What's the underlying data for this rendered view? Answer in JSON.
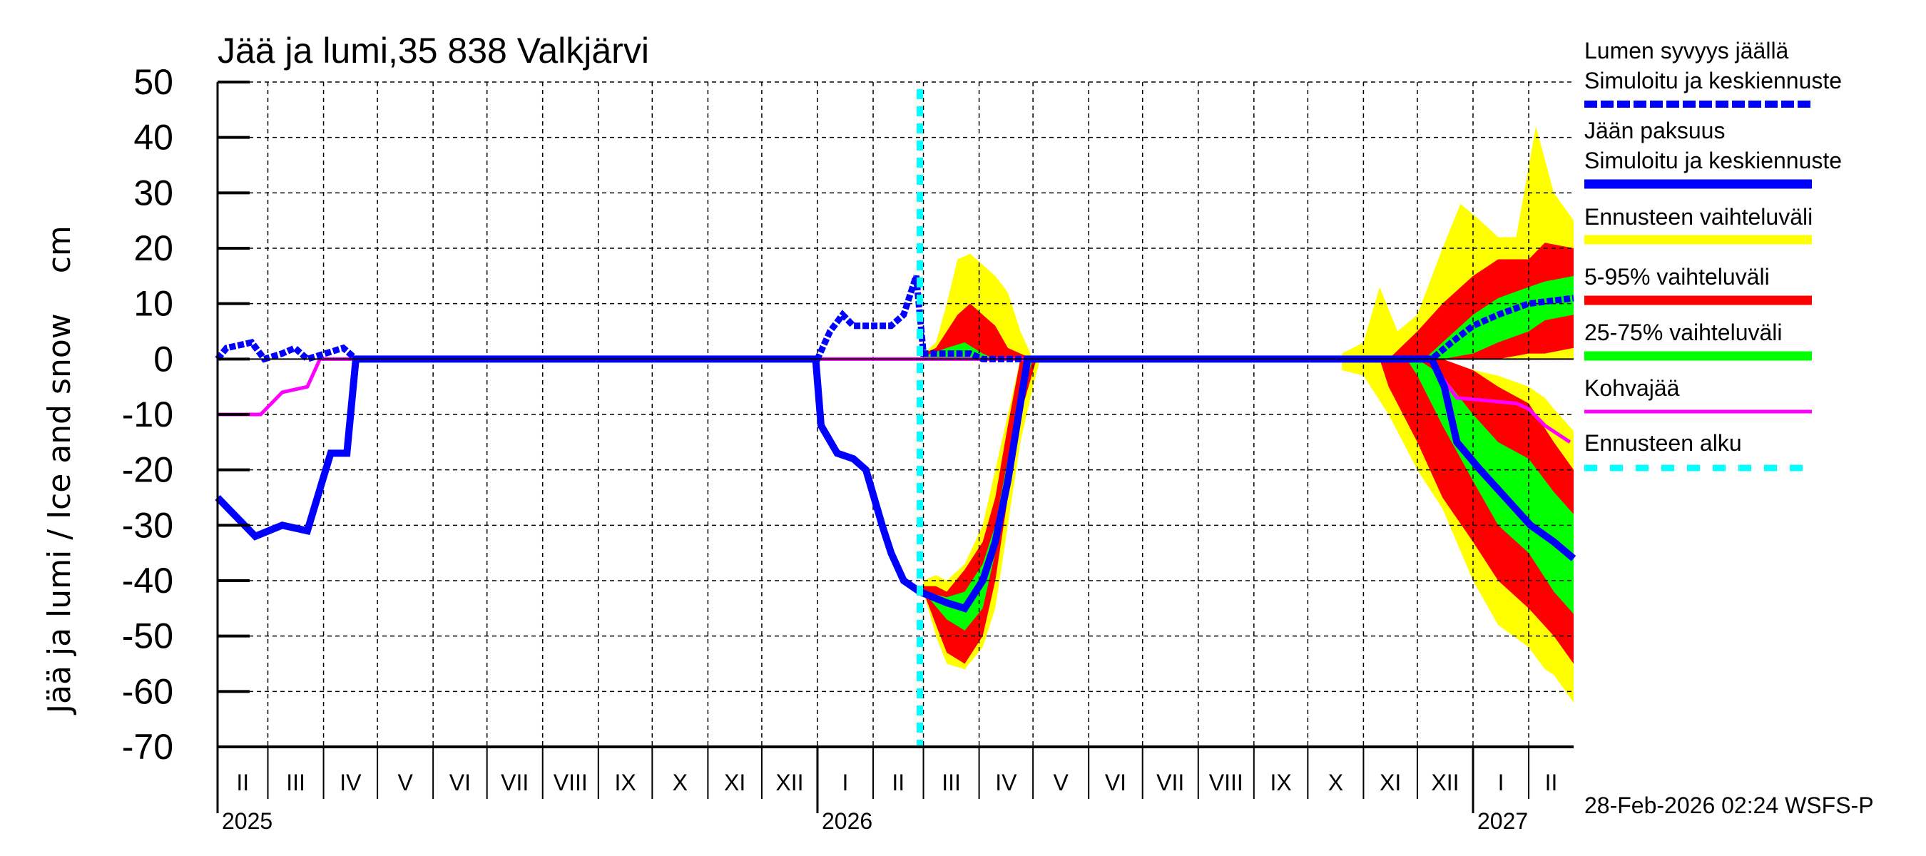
{
  "chart_data": {
    "type": "area",
    "title": "Jää ja lumi,35 838 Valkjärvi",
    "ylabel": "Jää ja lumi / Ice and snow    cm",
    "ylim": [
      -70,
      50
    ],
    "yticks": [
      50,
      40,
      30,
      20,
      10,
      0,
      -10,
      -20,
      -30,
      -40,
      -50,
      -60,
      -70
    ],
    "xlim": [
      "2025-02-01",
      "2027-02-26"
    ],
    "grid": true,
    "legend_placement": "right",
    "forecast_start": "2026-02-27",
    "months": [
      {
        "label": "II",
        "start": "2025-02-01"
      },
      {
        "label": "III",
        "start": "2025-03-01"
      },
      {
        "label": "IV",
        "start": "2025-04-01"
      },
      {
        "label": "V",
        "start": "2025-05-01"
      },
      {
        "label": "VI",
        "start": "2025-06-01"
      },
      {
        "label": "VII",
        "start": "2025-07-01"
      },
      {
        "label": "VIII",
        "start": "2025-08-01"
      },
      {
        "label": "IX",
        "start": "2025-09-01"
      },
      {
        "label": "X",
        "start": "2025-10-01"
      },
      {
        "label": "XI",
        "start": "2025-11-01"
      },
      {
        "label": "XII",
        "start": "2025-12-01"
      },
      {
        "label": "I",
        "start": "2026-01-01"
      },
      {
        "label": "II",
        "start": "2026-02-01"
      },
      {
        "label": "III",
        "start": "2026-03-01"
      },
      {
        "label": "IV",
        "start": "2026-04-01"
      },
      {
        "label": "V",
        "start": "2026-05-01"
      },
      {
        "label": "VI",
        "start": "2026-06-01"
      },
      {
        "label": "VII",
        "start": "2026-07-01"
      },
      {
        "label": "VIII",
        "start": "2026-08-01"
      },
      {
        "label": "IX",
        "start": "2026-09-01"
      },
      {
        "label": "X",
        "start": "2026-10-01"
      },
      {
        "label": "XI",
        "start": "2026-11-01"
      },
      {
        "label": "XII",
        "start": "2026-12-01"
      },
      {
        "label": "I",
        "start": "2027-01-01"
      },
      {
        "label": "II",
        "start": "2027-02-01"
      }
    ],
    "years": [
      {
        "label": "2025",
        "start": "2025-02-01"
      },
      {
        "label": "2026",
        "start": "2026-01-01"
      },
      {
        "label": "2027",
        "start": "2027-01-01"
      }
    ],
    "colors": {
      "snow": "#0000ff",
      "ice": "#0000ff",
      "range": "#ffff00",
      "p5_95": "#ff0000",
      "p25_75": "#00ff00",
      "kohva": "#ff00ff",
      "forecast_start": "#00ffff"
    },
    "bands": [
      {
        "kind": "range",
        "points": [
          [
            "2026-03-01",
            0,
            1
          ],
          [
            "2026-03-08",
            0,
            3
          ],
          [
            "2026-03-14",
            0,
            10
          ],
          [
            "2026-03-20",
            0,
            18
          ],
          [
            "2026-03-27",
            0,
            19
          ],
          [
            "2026-04-03",
            0,
            17
          ],
          [
            "2026-04-10",
            0,
            15
          ],
          [
            "2026-04-17",
            0,
            12
          ],
          [
            "2026-04-24",
            0,
            5
          ],
          [
            "2026-05-01",
            0,
            0
          ]
        ]
      },
      {
        "kind": "p5_95",
        "points": [
          [
            "2026-03-01",
            0,
            1
          ],
          [
            "2026-03-08",
            0,
            2
          ],
          [
            "2026-03-14",
            0,
            5
          ],
          [
            "2026-03-20",
            0,
            8
          ],
          [
            "2026-03-27",
            0,
            10
          ],
          [
            "2026-04-03",
            0,
            8
          ],
          [
            "2026-04-10",
            0,
            6
          ],
          [
            "2026-04-17",
            0,
            2
          ],
          [
            "2026-04-24",
            0,
            1
          ],
          [
            "2026-05-01",
            0,
            0
          ]
        ]
      },
      {
        "kind": "p25_75",
        "points": [
          [
            "2026-03-01",
            0,
            0.5
          ],
          [
            "2026-03-14",
            0,
            2
          ],
          [
            "2026-03-24",
            0,
            3
          ],
          [
            "2026-04-03",
            0,
            1
          ],
          [
            "2026-04-10",
            0,
            0
          ]
        ]
      },
      {
        "kind": "range",
        "points": [
          [
            "2026-03-01",
            -42,
            -40
          ],
          [
            "2026-03-08",
            -50,
            -39
          ],
          [
            "2026-03-14",
            -55,
            -40
          ],
          [
            "2026-03-24",
            -56,
            -37
          ],
          [
            "2026-04-03",
            -52,
            -30
          ],
          [
            "2026-04-10",
            -45,
            -20
          ],
          [
            "2026-04-17",
            -30,
            -10
          ],
          [
            "2026-04-24",
            -15,
            0
          ],
          [
            "2026-05-01",
            -5,
            0
          ],
          [
            "2026-05-05",
            0,
            0
          ]
        ]
      },
      {
        "kind": "p5_95",
        "points": [
          [
            "2026-03-01",
            -42,
            -41
          ],
          [
            "2026-03-08",
            -48,
            -41
          ],
          [
            "2026-03-14",
            -53,
            -42
          ],
          [
            "2026-03-24",
            -55,
            -38
          ],
          [
            "2026-04-03",
            -50,
            -33
          ],
          [
            "2026-04-10",
            -40,
            -25
          ],
          [
            "2026-04-17",
            -25,
            -12
          ],
          [
            "2026-04-24",
            -10,
            0
          ],
          [
            "2026-05-03",
            0,
            0
          ]
        ]
      },
      {
        "kind": "p25_75",
        "points": [
          [
            "2026-03-01",
            -42,
            -42
          ],
          [
            "2026-03-14",
            -47,
            -43
          ],
          [
            "2026-03-24",
            -49,
            -42
          ],
          [
            "2026-04-03",
            -45,
            -37
          ],
          [
            "2026-04-10",
            -35,
            -30
          ],
          [
            "2026-04-17",
            -20,
            -18
          ],
          [
            "2026-04-24",
            -10,
            -5
          ],
          [
            "2026-04-28",
            -3,
            0
          ],
          [
            "2026-05-01",
            0,
            0
          ]
        ]
      },
      {
        "kind": "range",
        "points": [
          [
            "2026-10-20",
            0,
            1
          ],
          [
            "2026-11-01",
            0,
            3
          ],
          [
            "2026-11-10",
            0,
            13
          ],
          [
            "2026-11-20",
            0,
            5
          ],
          [
            "2026-12-01",
            0,
            8
          ],
          [
            "2026-12-15",
            0,
            20
          ],
          [
            "2026-12-25",
            0,
            28
          ],
          [
            "2027-01-05",
            0,
            25
          ],
          [
            "2027-01-15",
            0,
            22
          ],
          [
            "2027-01-25",
            0,
            22
          ],
          [
            "2027-02-05",
            0,
            42
          ],
          [
            "2027-02-15",
            0,
            30
          ],
          [
            "2027-02-26",
            0,
            25
          ]
        ]
      },
      {
        "kind": "p5_95",
        "points": [
          [
            "2026-11-15",
            0,
            0
          ],
          [
            "2026-12-01",
            0,
            5
          ],
          [
            "2026-12-15",
            0,
            10
          ],
          [
            "2027-01-01",
            0,
            15
          ],
          [
            "2027-01-15",
            0,
            18
          ],
          [
            "2027-02-01",
            1,
            18
          ],
          [
            "2027-02-10",
            1,
            21
          ],
          [
            "2027-02-26",
            2,
            20
          ]
        ]
      },
      {
        "kind": "p25_75",
        "points": [
          [
            "2026-12-05",
            0,
            0
          ],
          [
            "2026-12-15",
            0,
            3
          ],
          [
            "2027-01-01",
            1,
            8
          ],
          [
            "2027-01-15",
            3,
            11
          ],
          [
            "2027-02-01",
            5,
            13
          ],
          [
            "2027-02-10",
            7,
            14
          ],
          [
            "2027-02-26",
            8,
            15
          ]
        ]
      },
      {
        "kind": "range",
        "points": [
          [
            "2026-10-20",
            -2,
            0
          ],
          [
            "2026-11-01",
            -3,
            0
          ],
          [
            "2026-11-15",
            -10,
            0
          ],
          [
            "2026-12-01",
            -20,
            0
          ],
          [
            "2026-12-15",
            -27,
            0
          ],
          [
            "2027-01-01",
            -40,
            -2
          ],
          [
            "2027-01-15",
            -48,
            -3
          ],
          [
            "2027-02-01",
            -52,
            -5
          ],
          [
            "2027-02-10",
            -56,
            -7
          ],
          [
            "2027-02-15",
            -57,
            -9
          ],
          [
            "2027-02-26",
            -62,
            -13
          ]
        ]
      },
      {
        "kind": "p5_95",
        "points": [
          [
            "2026-11-10",
            0,
            0
          ],
          [
            "2026-11-15",
            -5,
            0
          ],
          [
            "2026-12-01",
            -15,
            0
          ],
          [
            "2026-12-15",
            -25,
            0
          ],
          [
            "2027-01-01",
            -33,
            -2
          ],
          [
            "2027-01-15",
            -40,
            -5
          ],
          [
            "2027-02-01",
            -45,
            -8
          ],
          [
            "2027-02-15",
            -50,
            -15
          ],
          [
            "2027-02-26",
            -55,
            -20
          ]
        ]
      },
      {
        "kind": "p25_75",
        "points": [
          [
            "2026-11-25",
            0,
            0
          ],
          [
            "2026-12-01",
            -3,
            0
          ],
          [
            "2026-12-15",
            -12,
            -3
          ],
          [
            "2027-01-01",
            -22,
            -10
          ],
          [
            "2027-01-15",
            -30,
            -15
          ],
          [
            "2027-02-01",
            -35,
            -18
          ],
          [
            "2027-02-15",
            -42,
            -24
          ],
          [
            "2027-02-26",
            -46,
            -28
          ]
        ]
      }
    ],
    "series": [
      {
        "name": "Lumen syvyys jäällä",
        "kind": "snow",
        "points": [
          [
            "2025-02-01",
            0
          ],
          [
            "2025-02-06",
            2
          ],
          [
            "2025-02-20",
            3
          ],
          [
            "2025-02-27",
            0
          ],
          [
            "2025-03-09",
            1
          ],
          [
            "2025-03-16",
            2
          ],
          [
            "2025-03-23",
            0
          ],
          [
            "2025-04-12",
            2
          ],
          [
            "2025-04-19",
            0
          ],
          [
            "2026-01-01",
            0
          ],
          [
            "2026-01-08",
            5
          ],
          [
            "2026-01-15",
            8
          ],
          [
            "2026-01-21",
            6
          ],
          [
            "2026-02-11",
            6
          ],
          [
            "2026-02-18",
            8
          ],
          [
            "2026-02-25",
            15
          ],
          [
            "2026-03-01",
            1
          ],
          [
            "2026-03-27",
            1
          ],
          [
            "2026-04-03",
            0
          ],
          [
            "2026-12-09",
            0
          ],
          [
            "2026-12-20",
            3
          ],
          [
            "2027-01-01",
            6
          ],
          [
            "2027-01-15",
            8
          ],
          [
            "2027-02-01",
            10
          ],
          [
            "2027-02-26",
            11
          ]
        ]
      },
      {
        "name": "Jään paksuus",
        "kind": "ice",
        "points": [
          [
            "2025-02-01",
            -25
          ],
          [
            "2025-02-10",
            -28
          ],
          [
            "2025-02-22",
            -32
          ],
          [
            "2025-03-09",
            -30
          ],
          [
            "2025-03-23",
            -31
          ],
          [
            "2025-04-05",
            -17
          ],
          [
            "2025-04-14",
            -17
          ],
          [
            "2025-04-19",
            0
          ],
          [
            "2025-12-31",
            0
          ],
          [
            "2026-01-03",
            -12
          ],
          [
            "2026-01-12",
            -17
          ],
          [
            "2026-01-21",
            -18
          ],
          [
            "2026-01-28",
            -20
          ],
          [
            "2026-02-06",
            -30
          ],
          [
            "2026-02-11",
            -35
          ],
          [
            "2026-02-18",
            -40
          ],
          [
            "2026-02-27",
            -42
          ],
          [
            "2026-03-14",
            -44
          ],
          [
            "2026-03-24",
            -45
          ],
          [
            "2026-04-03",
            -40
          ],
          [
            "2026-04-10",
            -33
          ],
          [
            "2026-04-17",
            -22
          ],
          [
            "2026-04-24",
            -8
          ],
          [
            "2026-04-28",
            0
          ],
          [
            "2026-12-09",
            0
          ],
          [
            "2026-12-16",
            -5
          ],
          [
            "2026-12-23",
            -15
          ],
          [
            "2027-01-05",
            -20
          ],
          [
            "2027-01-19",
            -25
          ],
          [
            "2027-02-02",
            -30
          ],
          [
            "2027-02-15",
            -33
          ],
          [
            "2027-02-26",
            -36
          ]
        ]
      },
      {
        "name": "Kohvajää",
        "kind": "kohva",
        "points": [
          [
            "2025-02-01",
            -10
          ],
          [
            "2025-02-25",
            -10
          ],
          [
            "2025-03-03",
            -8
          ],
          [
            "2025-03-09",
            -6
          ],
          [
            "2025-03-23",
            -5
          ],
          [
            "2025-03-30",
            0
          ],
          [
            "2026-12-09",
            0
          ],
          [
            "2026-12-14",
            -3
          ],
          [
            "2026-12-23",
            -7
          ],
          [
            "2027-01-25",
            -8
          ],
          [
            "2027-02-01",
            -9
          ],
          [
            "2027-02-10",
            -12
          ],
          [
            "2027-02-24",
            -15
          ]
        ]
      }
    ],
    "legend": [
      {
        "label": "Lumen syvyys jäällä",
        "label2": "Simuloitu ja keskiennuste",
        "kind": "snow"
      },
      {
        "label": "Jään paksuus",
        "label2": "Simuloitu ja keskiennuste",
        "kind": "ice"
      },
      {
        "label": "Ennusteen vaihteluväli",
        "kind": "range"
      },
      {
        "label": "5-95% vaihteluväli",
        "kind": "p5_95"
      },
      {
        "label": "25-75% vaihteluväli",
        "kind": "p25_75"
      },
      {
        "label": "Kohvajää",
        "kind": "kohva"
      },
      {
        "label": "Ennusteen alku",
        "kind": "forecast_start"
      }
    ],
    "timestamp": "28-Feb-2026 02:24 WSFS-P"
  }
}
